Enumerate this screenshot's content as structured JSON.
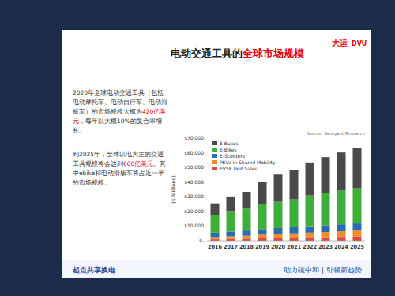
{
  "slide": {
    "title": [
      {
        "text": "电动交通工具的"
      },
      {
        "text": "全球市场规模",
        "color": "#e60012"
      }
    ],
    "logo_cn": "大运",
    "logo_en": "DVU",
    "paragraphs": [
      [
        {
          "text": "2020年全球电动交通工具（包括电动摩托车、电动自行车、电动滑板车）的市场规模大概为"
        },
        {
          "text": "420亿美元",
          "color": "#e60012"
        },
        {
          "text": "，每年以大概10%的复合率增长。"
        }
      ],
      [
        {
          "text": "到2025年，全球以电为主的交通工具规模将会达到"
        },
        {
          "text": "600亿美元",
          "color": "#e60012"
        },
        {
          "text": "。其中ebike和电动滑板车将占近一半的市场规模。"
        }
      ]
    ],
    "banner_left": "起点共享换电",
    "banner_right": "助力碳中和 | 引领新趋势"
  },
  "chart_data": {
    "type": "bar",
    "stacked": true,
    "grid": false,
    "legend": "upper left",
    "ylabel": "($ Millions)",
    "source": "Source: Navigant Research",
    "categories": [
      "2016",
      "2017",
      "2018",
      "2019",
      "2020",
      "2021",
      "2022",
      "2023",
      "2024",
      "2025"
    ],
    "ylim": [
      0,
      70000
    ],
    "yticks": [
      {
        "value": 0,
        "label": "$-"
      },
      {
        "value": 10000,
        "label": "$10,000"
      },
      {
        "value": 20000,
        "label": "$20,000"
      },
      {
        "value": 30000,
        "label": "$30,000"
      },
      {
        "value": 40000,
        "label": "$40,000"
      },
      {
        "value": 50000,
        "label": "$50,000"
      },
      {
        "value": 60000,
        "label": "$60,000"
      },
      {
        "value": 70000,
        "label": "$70,000"
      }
    ],
    "series": [
      {
        "name": "E-Buses",
        "color": "#4a4a4a",
        "values": [
          8000,
          10000,
          11500,
          15000,
          18500,
          20000,
          22500,
          24500,
          26000,
          27500
        ]
      },
      {
        "name": "E-Bikes",
        "color": "#3fae3a",
        "values": [
          12000,
          14000,
          15000,
          17000,
          18000,
          19000,
          21000,
          22000,
          23000,
          24000
        ]
      },
      {
        "name": "E-Scooters",
        "color": "#2b6cb0",
        "values": [
          3000,
          3200,
          3500,
          3800,
          4000,
          4200,
          4400,
          4600,
          4800,
          5000
        ]
      },
      {
        "name": "PEVs in Shared Mobility",
        "color": "#f28c28",
        "values": [
          1500,
          1800,
          2000,
          2500,
          2800,
          3000,
          3300,
          3500,
          3800,
          4000
        ]
      },
      {
        "name": "EVSE Unit Sales",
        "color": "#d94a4a",
        "values": [
          1000,
          1200,
          1400,
          1600,
          1800,
          2000,
          2200,
          2400,
          2600,
          2800
        ]
      }
    ]
  }
}
